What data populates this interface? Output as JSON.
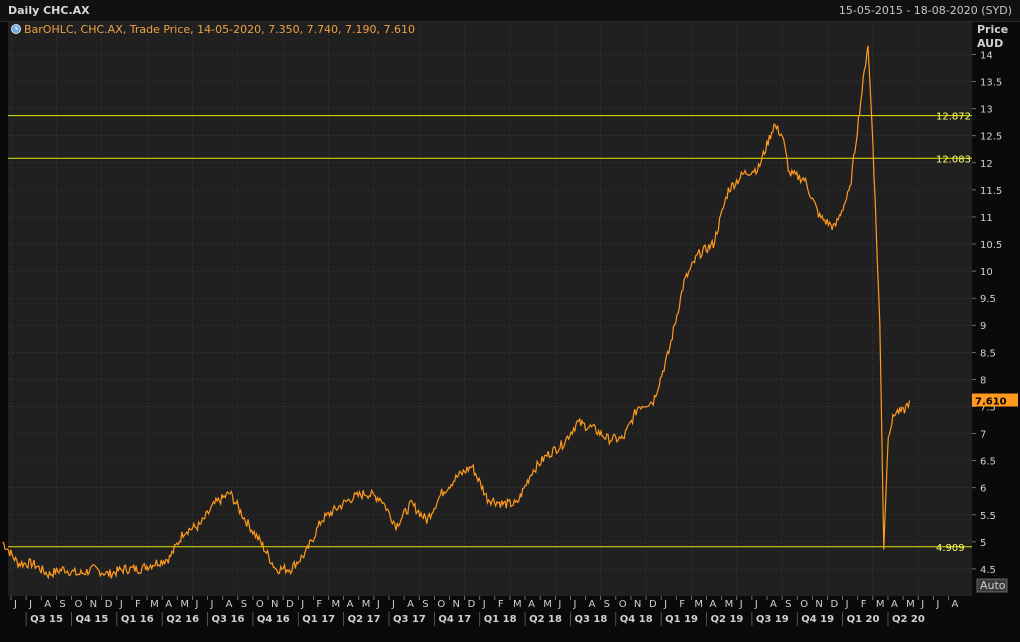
{
  "header": {
    "title": "Daily CHC.AX",
    "date_range": "15-05-2015 - 18-08-2020 (SYD)"
  },
  "legend": {
    "text": "BarOHLC, CHC.AX, Trade Price,  14-05-2020, 7.350, 7.740, 7.190, 7.610",
    "icon": "clock-icon"
  },
  "y_axis": {
    "title_line1": "Price",
    "title_line2": "AUD",
    "auto_label": "Auto"
  },
  "colors": {
    "background": "#202020",
    "grid": "#3a3a3a",
    "series": "#ff9a1e",
    "hline": "#e6e600",
    "last_box": "#ff9a1e"
  },
  "chart_data": {
    "type": "line",
    "series": [
      {
        "x": [
          "2015-05-15",
          "2015-06-15",
          "2015-07-15",
          "2015-08-15",
          "2015-09-15",
          "2015-10-15",
          "2015-11-15",
          "2015-12-15",
          "2016-01-15",
          "2016-02-15",
          "2016-03-15",
          "2016-04-15",
          "2016-05-15",
          "2016-06-15",
          "2016-07-15",
          "2016-08-15",
          "2016-09-15",
          "2016-10-15",
          "2016-11-15",
          "2016-12-15",
          "2017-01-15",
          "2017-02-15",
          "2017-03-15",
          "2017-04-15",
          "2017-05-15",
          "2017-06-15",
          "2017-07-15",
          "2017-08-15",
          "2017-09-15",
          "2017-10-15",
          "2017-11-15",
          "2017-12-15",
          "2018-01-15",
          "2018-02-15",
          "2018-03-15",
          "2018-04-15",
          "2018-05-15",
          "2018-06-15",
          "2018-07-15",
          "2018-08-15",
          "2018-09-15",
          "2018-10-15",
          "2018-11-15",
          "2018-12-15",
          "2019-01-15",
          "2019-02-15",
          "2019-03-15",
          "2019-04-15",
          "2019-05-15",
          "2019-06-15",
          "2019-07-15",
          "2019-08-15",
          "2019-09-01",
          "2019-09-15",
          "2019-10-15",
          "2019-11-15",
          "2019-12-15",
          "2020-01-15",
          "2020-02-01",
          "2020-02-20",
          "2020-03-01",
          "2020-03-15",
          "2020-03-23",
          "2020-04-01",
          "2020-04-15",
          "2020-05-01",
          "2020-05-14"
        ],
        "y": [
          5.0,
          4.6,
          4.6,
          4.4,
          4.5,
          4.4,
          4.5,
          4.4,
          4.5,
          4.5,
          4.6,
          4.7,
          5.2,
          5.3,
          5.7,
          5.9,
          5.4,
          5.0,
          4.5,
          4.5,
          4.8,
          5.4,
          5.6,
          5.8,
          5.9,
          5.8,
          5.3,
          5.7,
          5.4,
          5.9,
          6.2,
          6.4,
          5.8,
          5.7,
          5.7,
          6.3,
          6.6,
          6.8,
          7.2,
          7.1,
          6.9,
          6.9,
          7.5,
          7.6,
          8.5,
          9.8,
          10.3,
          10.5,
          11.5,
          11.8,
          11.9,
          12.7,
          12.5,
          11.8,
          11.7,
          11.0,
          10.8,
          11.5,
          12.8,
          14.2,
          12.4,
          9.0,
          4.9,
          7.0,
          7.4,
          7.4,
          7.61
        ]
      }
    ],
    "ylim": [
      4.0,
      14.6
    ],
    "y_ticks": [
      "4.5",
      "5",
      "5.5",
      "6",
      "6.5",
      "7",
      "7.5",
      "8",
      "8.5",
      "9",
      "9.5",
      "10",
      "10.5",
      "11",
      "11.5",
      "12",
      "12.5",
      "13",
      "13.5",
      "14"
    ],
    "month_labels": [
      "J",
      "J",
      "A",
      "S",
      "O",
      "N",
      "D",
      "J",
      "F",
      "M",
      "A",
      "M",
      "J",
      "J",
      "A",
      "S",
      "O",
      "N",
      "D",
      "J",
      "F",
      "M",
      "A",
      "M",
      "J",
      "J",
      "A",
      "S",
      "O",
      "N",
      "D",
      "J",
      "F",
      "M",
      "A",
      "M",
      "J",
      "J",
      "A",
      "S",
      "O",
      "N",
      "D",
      "J",
      "F",
      "M",
      "A",
      "M",
      "J",
      "J",
      "A",
      "S",
      "O",
      "N",
      "D",
      "J",
      "F",
      "M",
      "A",
      "M",
      "J",
      "J",
      "A"
    ],
    "quarter_labels": [
      "Q3 15",
      "Q4 15",
      "Q1 16",
      "Q2 16",
      "Q3 16",
      "Q4 16",
      "Q1 17",
      "Q2 17",
      "Q3 17",
      "Q4 17",
      "Q1 18",
      "Q2 18",
      "Q3 18",
      "Q4 18",
      "Q1 19",
      "Q2 19",
      "Q3 19",
      "Q4 19",
      "Q1 20",
      "Q2 20"
    ],
    "horizontal_lines": [
      {
        "label": "12.872",
        "value": 12.872
      },
      {
        "label": "12.083",
        "value": 12.083
      },
      {
        "label": "4.909",
        "value": 4.909
      }
    ],
    "last_value": {
      "label": "7.610",
      "value": 7.61
    },
    "grid": true
  }
}
